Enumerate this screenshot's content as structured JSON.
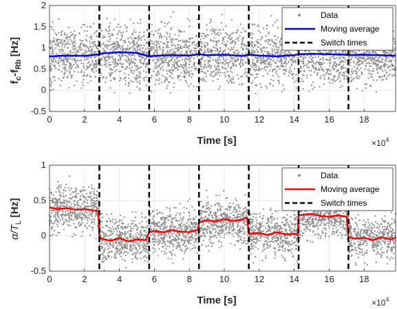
{
  "chart_data": [
    {
      "type": "scatter",
      "ylabel": "f c-f Rb [Hz]",
      "ylabel_main": "f",
      "ylabel_sub1": "c",
      "ylabel_mid": "-f",
      "ylabel_sub2": "Rb",
      "ylabel_unit": " [Hz]",
      "xlabel": "Time [s]",
      "x_multiplier": "×10",
      "x_multiplier_exp": "4",
      "xlim": [
        0,
        19.8
      ],
      "ylim": [
        -0.5,
        2
      ],
      "xticks": [
        "0",
        "2",
        "4",
        "6",
        "8",
        "10",
        "12",
        "14",
        "16",
        "18"
      ],
      "yticks": [
        "-0.5",
        "0",
        "0.5",
        "1",
        "1.5",
        "2"
      ],
      "grid": true,
      "legend_position": "top-right",
      "legend": [
        "Data",
        "Moving average",
        "Switch times"
      ],
      "colors": {
        "data": "#8c8c8c",
        "average": "#0000ff",
        "switch": "#000000"
      },
      "switch_times": [
        2.85,
        5.7,
        8.55,
        11.4,
        14.25,
        17.1
      ],
      "scatter_band": {
        "center": 0.83,
        "spread": 0.9
      },
      "moving_average": {
        "x": [
          0,
          1,
          2,
          2.85,
          3,
          4,
          5,
          5.7,
          6,
          7,
          8,
          8.55,
          9,
          10,
          11,
          11.4,
          12,
          13,
          14,
          14.25,
          15,
          16,
          17,
          17.1,
          18,
          19,
          19.8
        ],
        "y": [
          0.8,
          0.82,
          0.81,
          0.85,
          0.87,
          0.9,
          0.88,
          0.8,
          0.81,
          0.83,
          0.82,
          0.85,
          0.83,
          0.84,
          0.81,
          0.84,
          0.82,
          0.8,
          0.83,
          0.85,
          0.86,
          0.85,
          0.84,
          0.83,
          0.84,
          0.83,
          0.81
        ]
      }
    },
    {
      "type": "scatter",
      "ylabel_main": "α/T",
      "ylabel_sub": "L",
      "ylabel_unit": " [Hz]",
      "xlabel": "Time [s]",
      "x_multiplier": "×10",
      "x_multiplier_exp": "4",
      "xlim": [
        0,
        19.8
      ],
      "ylim": [
        -0.5,
        1
      ],
      "xticks": [
        "0",
        "2",
        "4",
        "6",
        "8",
        "10",
        "12",
        "14",
        "16",
        "18"
      ],
      "yticks": [
        "-0.5",
        "0",
        "0.5",
        "1"
      ],
      "grid": true,
      "legend_position": "top-right",
      "legend": [
        "Data",
        "Moving average",
        "Switch times"
      ],
      "colors": {
        "data": "#8c8c8c",
        "average": "#ff0000",
        "switch": "#000000"
      },
      "switch_times": [
        2.85,
        5.7,
        8.55,
        11.4,
        14.25,
        17.1
      ],
      "segment_levels": [
        0.38,
        -0.05,
        0.07,
        0.21,
        0.03,
        0.28,
        -0.03
      ],
      "scatter_spread": 0.42,
      "moving_average": {
        "x": [
          0,
          0.5,
          1,
          1.5,
          2,
          2.5,
          2.8,
          2.85,
          3,
          3.5,
          4,
          4.5,
          5,
          5.5,
          5.7,
          6,
          6.5,
          7,
          7.5,
          8,
          8.5,
          8.55,
          9,
          9.5,
          10,
          10.5,
          11,
          11.3,
          11.4,
          12,
          12.5,
          13,
          13.5,
          14,
          14.2,
          14.25,
          15,
          15.5,
          16,
          16.5,
          17,
          17.1,
          17.5,
          18,
          18.5,
          19,
          19.5,
          19.8
        ],
        "y": [
          0.4,
          0.38,
          0.39,
          0.37,
          0.38,
          0.36,
          0.35,
          -0.02,
          -0.04,
          -0.07,
          -0.03,
          -0.08,
          -0.05,
          -0.06,
          0.05,
          0.07,
          0.05,
          0.08,
          0.06,
          0.05,
          0.09,
          0.19,
          0.22,
          0.2,
          0.24,
          0.21,
          0.23,
          0.26,
          0.03,
          0.04,
          0.01,
          0.05,
          0.02,
          0.03,
          0.01,
          0.29,
          0.31,
          0.28,
          0.27,
          0.29,
          0.27,
          -0.02,
          -0.04,
          -0.03,
          -0.06,
          -0.02,
          -0.05,
          -0.03
        ]
      }
    }
  ]
}
